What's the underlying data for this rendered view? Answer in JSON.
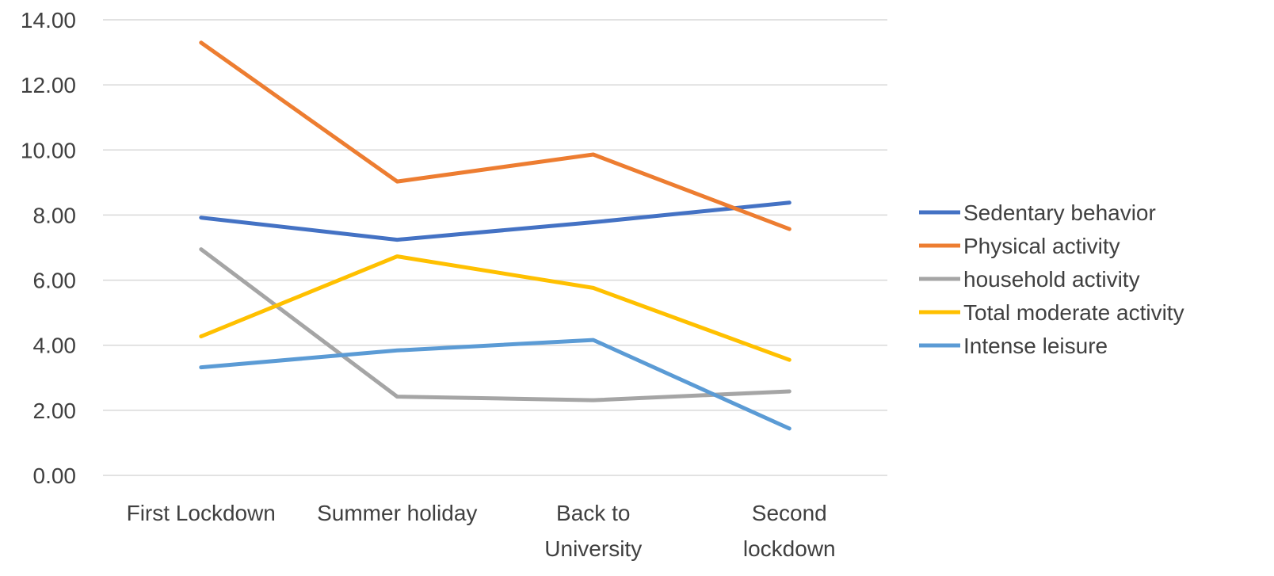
{
  "chart_data": {
    "type": "line",
    "title": "",
    "xlabel": "",
    "ylabel": "",
    "categories": [
      [
        "First Lockdown"
      ],
      [
        "Summer holiday"
      ],
      [
        "Back to",
        "University"
      ],
      [
        "Second",
        "lockdown"
      ]
    ],
    "ylim": [
      0,
      14
    ],
    "yticks": [
      "0.00",
      "2.00",
      "4.00",
      "6.00",
      "8.00",
      "10.00",
      "12.00",
      "14.00"
    ],
    "grid": true,
    "legend_position": "right",
    "series": [
      {
        "name": "Sedentary behavior",
        "color": "#4472C4",
        "values": [
          7.92,
          7.24,
          7.78,
          8.38
        ]
      },
      {
        "name": "Physical activity",
        "color": "#ED7D31",
        "values": [
          13.3,
          9.03,
          9.86,
          7.57
        ]
      },
      {
        "name": "household activity",
        "color": "#A5A5A5",
        "values": [
          6.95,
          2.42,
          2.31,
          2.58
        ]
      },
      {
        "name": "Total moderate activity",
        "color": "#FFC000",
        "values": [
          4.27,
          6.73,
          5.76,
          3.55
        ]
      },
      {
        "name": "Intense leisure",
        "color": "#5B9BD5",
        "values": [
          3.32,
          3.84,
          4.16,
          1.44
        ]
      }
    ]
  }
}
